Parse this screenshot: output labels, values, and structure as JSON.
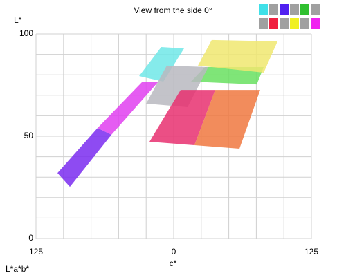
{
  "chart_data": {
    "type": "scatter",
    "title": "View from the side 0°",
    "y_label": "L*",
    "x_label": "c*",
    "footer": "L*a*b*",
    "xlim": [
      -125,
      125
    ],
    "xticks": [
      {
        "value": -125,
        "label": "125"
      },
      0,
      125
    ],
    "xgrid": [
      -100,
      -75,
      -50,
      -25,
      25,
      50,
      75,
      100
    ],
    "ylim": [
      0,
      100
    ],
    "yticks": [
      0,
      50,
      100
    ],
    "ygrid": [
      10,
      20,
      30,
      40,
      60,
      70,
      80,
      90
    ],
    "grid": true,
    "series": [
      {
        "color": "#7a2cf0",
        "x": [
          -105.5,
          -94.2,
          -56.5,
          -69.1
        ],
        "values": [
          32,
          25.3,
          50.7,
          54
        ]
      },
      {
        "color": "#e040f0",
        "x": [
          -69.1,
          -56.5,
          -13.8,
          -28.3
        ],
        "values": [
          54,
          50.7,
          76.7,
          76.7
        ]
      },
      {
        "color": "#70e8e8",
        "x": [
          -31.4,
          -11.3,
          9.4,
          -9.4
        ],
        "values": [
          79.4,
          93.6,
          92.9,
          76.7
        ]
      },
      {
        "color": "#68e060",
        "x": [
          15.7,
          28.3,
          81.7,
          75.4
        ],
        "values": [
          76.7,
          83.8,
          83.8,
          75.3
        ]
      },
      {
        "color": "#f0e870",
        "x": [
          22,
          34.5,
          94.2,
          81.7
        ],
        "values": [
          84.5,
          97,
          96.3,
          81.1
        ]
      },
      {
        "color": "#b8b8c0",
        "x": [
          -25,
          -6.3,
          31.4,
          12.6
        ],
        "values": [
          65.9,
          84.5,
          83.8,
          64.2
        ]
      },
      {
        "color": "#e83070",
        "x": [
          -22,
          6.3,
          37.7,
          18.8
        ],
        "values": [
          47.3,
          72.6,
          72.6,
          45.6
        ]
      },
      {
        "color": "#f07840",
        "x": [
          18.8,
          37.7,
          78.5,
          59.7
        ],
        "values": [
          45.6,
          72.6,
          72.6,
          43.9
        ]
      }
    ]
  }
}
